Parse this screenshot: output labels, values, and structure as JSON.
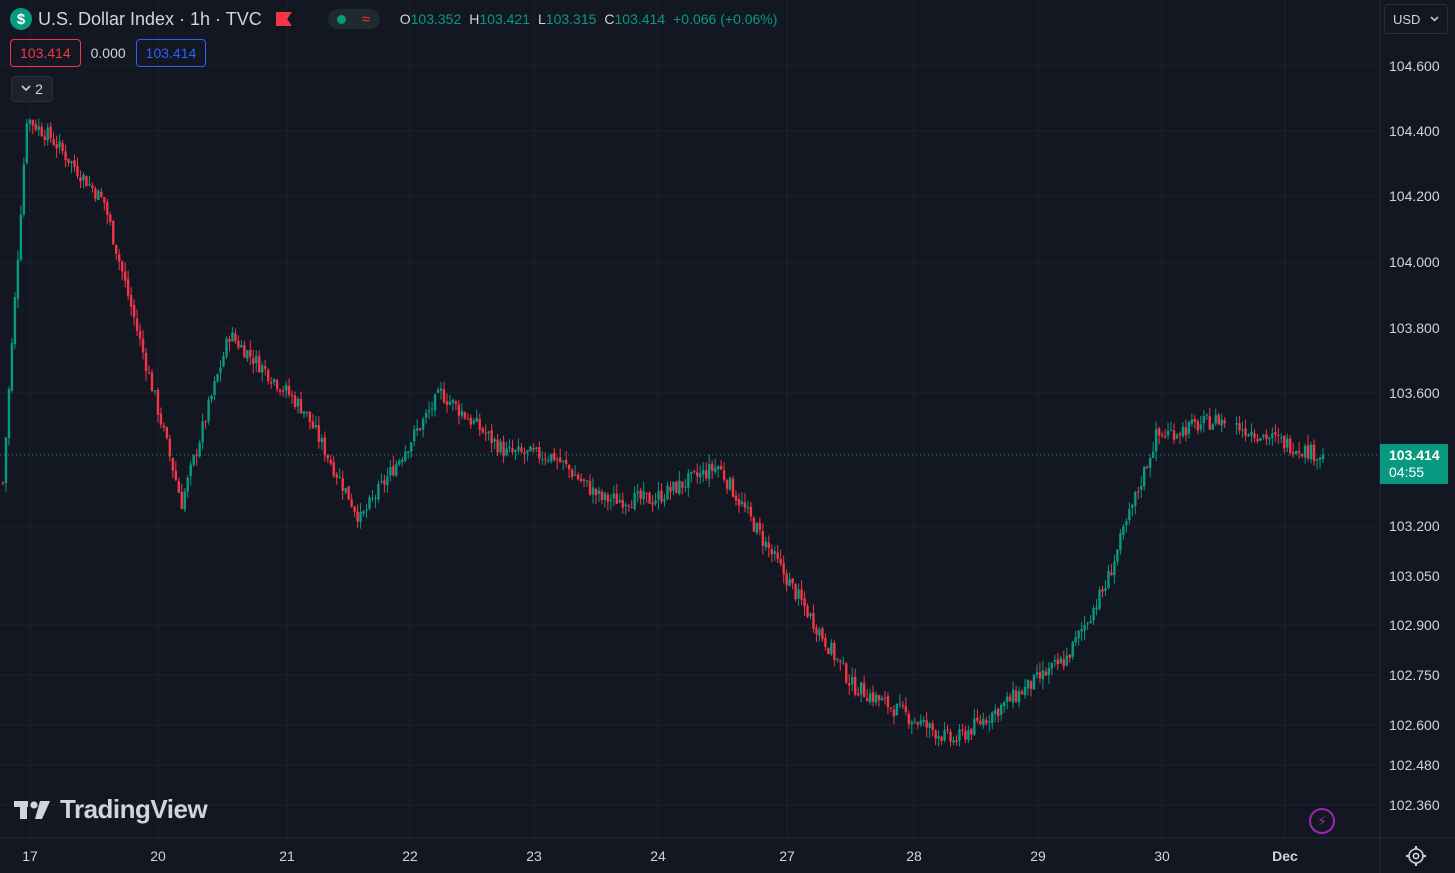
{
  "legend": {
    "symbol_logo": "$",
    "title": "U.S. Dollar Index · 1h · TVC",
    "ohlc": [
      {
        "k": "O",
        "v": "103.352"
      },
      {
        "k": "H",
        "v": "103.421"
      },
      {
        "k": "L",
        "v": "103.315"
      },
      {
        "k": "C",
        "v": "103.414"
      },
      {
        "k": "",
        "v": "+0.066 (+0.06%)"
      }
    ]
  },
  "price_boxes": {
    "sell": "103.414",
    "spread": "0.000",
    "buy": "103.414"
  },
  "collapse": {
    "count": "2",
    "icon": "chevron-down-icon"
  },
  "currency": {
    "label": "USD",
    "icon": "chevron-down-icon"
  },
  "brand": {
    "name": "TradingView"
  },
  "last_price": {
    "value": "103.414",
    "countdown": "04:55"
  },
  "colors": {
    "up": "#089981",
    "down": "#f23645",
    "bg": "#131722",
    "grid": "#1e222d"
  },
  "chart_data": {
    "type": "candlestick",
    "y_ticks": [
      "104.600",
      "104.400",
      "104.200",
      "104.000",
      "103.800",
      "103.600",
      "103.200",
      "103.050",
      "102.900",
      "102.750",
      "102.600",
      "102.480",
      "102.360"
    ],
    "x_ticks": [
      "17",
      "20",
      "21",
      "22",
      "23",
      "24",
      "27",
      "28",
      "29",
      "30",
      "Dec"
    ],
    "anchors": [
      [
        0,
        103.33
      ],
      [
        8,
        104.44
      ],
      [
        16,
        104.38
      ],
      [
        34,
        104.18
      ],
      [
        60,
        103.27
      ],
      [
        76,
        103.78
      ],
      [
        101,
        103.55
      ],
      [
        120,
        103.22
      ],
      [
        147,
        103.6
      ],
      [
        169,
        103.42
      ],
      [
        185,
        103.41
      ],
      [
        201,
        103.28
      ],
      [
        218,
        103.28
      ],
      [
        240,
        103.38
      ],
      [
        285,
        102.72
      ],
      [
        319,
        102.55
      ],
      [
        357,
        102.8
      ],
      [
        370,
        103.02
      ],
      [
        387,
        103.47
      ],
      [
        408,
        103.52
      ],
      [
        443,
        103.41
      ]
    ],
    "last": 103.414,
    "gaps": [
      [
        411,
        413
      ]
    ]
  }
}
